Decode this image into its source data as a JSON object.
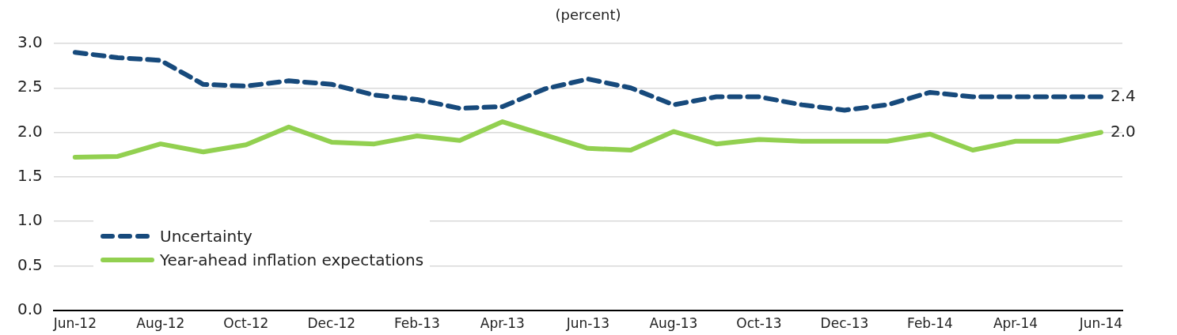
{
  "chart_data": {
    "type": "line",
    "subtitle": "(percent)",
    "categories": [
      "Jun-12",
      null,
      "Aug-12",
      null,
      "Oct-12",
      null,
      "Dec-12",
      null,
      "Feb-13",
      null,
      "Apr-13",
      null,
      "Jun-13",
      null,
      "Aug-13",
      null,
      "Oct-13",
      null,
      "Dec-13",
      null,
      "Feb-14",
      null,
      "Apr-14",
      null,
      "Jun-14"
    ],
    "series": [
      {
        "name": "Uncertainty",
        "color": "#174a7c",
        "line_style": "dashed",
        "values": [
          2.9,
          2.84,
          2.81,
          2.54,
          2.52,
          2.58,
          2.54,
          2.42,
          2.37,
          2.27,
          2.29,
          2.49,
          2.6,
          2.5,
          2.31,
          2.4,
          2.4,
          2.31,
          2.25,
          2.31,
          2.45,
          2.4,
          2.4,
          2.4,
          2.4
        ]
      },
      {
        "name": "Year-ahead inflation expectations",
        "color": "#92d050",
        "line_style": "solid",
        "values": [
          1.72,
          1.73,
          1.87,
          1.78,
          1.86,
          2.06,
          1.89,
          1.87,
          1.96,
          1.91,
          2.12,
          1.97,
          1.82,
          1.8,
          2.01,
          1.87,
          1.92,
          1.9,
          1.9,
          1.9,
          1.98,
          1.8,
          1.9,
          1.9,
          2.0
        ]
      }
    ],
    "ylim": [
      0,
      3
    ],
    "yticks": [
      {
        "value": 0,
        "label": "0.0"
      },
      {
        "value": 0.5,
        "label": "0.5"
      },
      {
        "value": 1,
        "label": "1.0"
      },
      {
        "value": 1.5,
        "label": "1.5"
      },
      {
        "value": 2,
        "label": "2.0"
      },
      {
        "value": 2.5,
        "label": "2.5"
      },
      {
        "value": 3,
        "label": "3.0"
      }
    ],
    "grid": "y",
    "legend": "bottom left",
    "marker": "none",
    "annotations": [
      {
        "text": "2.4",
        "x": "Jun-14",
        "y": 2.4
      },
      {
        "text": "2.0",
        "x": "Jun-14",
        "y": 2.0
      }
    ]
  }
}
